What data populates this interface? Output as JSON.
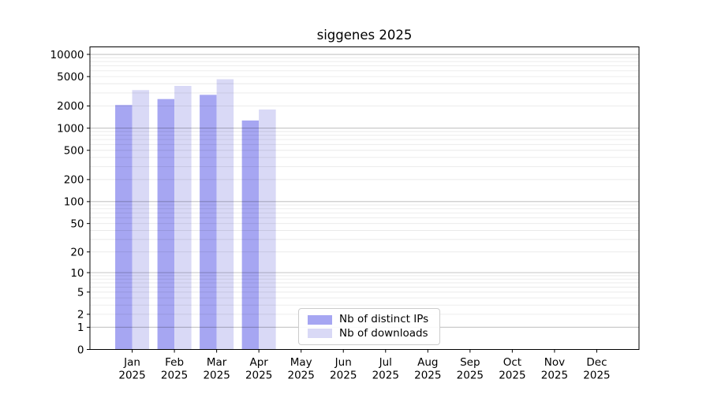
{
  "chart_data": {
    "type": "bar",
    "title": "siggenes 2025",
    "categories": [
      "Jan 2025",
      "Feb 2025",
      "Mar 2025",
      "Apr 2025",
      "May 2025",
      "Jun 2025",
      "Jul 2025",
      "Aug 2025",
      "Sep 2025",
      "Oct 2025",
      "Nov 2025",
      "Dec 2025"
    ],
    "x_tick_months": [
      "Jan",
      "Feb",
      "Mar",
      "Apr",
      "May",
      "Jun",
      "Jul",
      "Aug",
      "Sep",
      "Oct",
      "Nov",
      "Dec"
    ],
    "x_tick_year": "2025",
    "series": [
      {
        "name": "Nb of distinct IPs",
        "color": "#a6a6f2",
        "values": [
          2060,
          2480,
          2830,
          1270,
          null,
          null,
          null,
          null,
          null,
          null,
          null,
          null
        ]
      },
      {
        "name": "Nb of downloads",
        "color": "#d9d9f6",
        "values": [
          3280,
          3740,
          4610,
          1790,
          null,
          null,
          null,
          null,
          null,
          null,
          null,
          null
        ]
      }
    ],
    "yscale": "log10(value+1)",
    "ylim": [
      0,
      12600
    ],
    "y_ticks": [
      0,
      1,
      2,
      5,
      10,
      20,
      50,
      100,
      200,
      500,
      1000,
      2000,
      5000,
      10000
    ],
    "grid": {
      "major_lines": [
        1,
        10,
        100,
        1000,
        10000
      ],
      "minor_mantissas": [
        2,
        3,
        4,
        5,
        6,
        7,
        8,
        9
      ],
      "minor_decades": [
        1,
        10,
        100,
        1000
      ]
    },
    "legend": {
      "position": "lower center"
    },
    "colors": {
      "grid_major": "rgba(0,0,0,0.23)",
      "grid_minor": "rgba(0,0,0,0.085)",
      "spine": "#000000",
      "background": "#ffffff",
      "legend_border": "#cccccc"
    }
  }
}
